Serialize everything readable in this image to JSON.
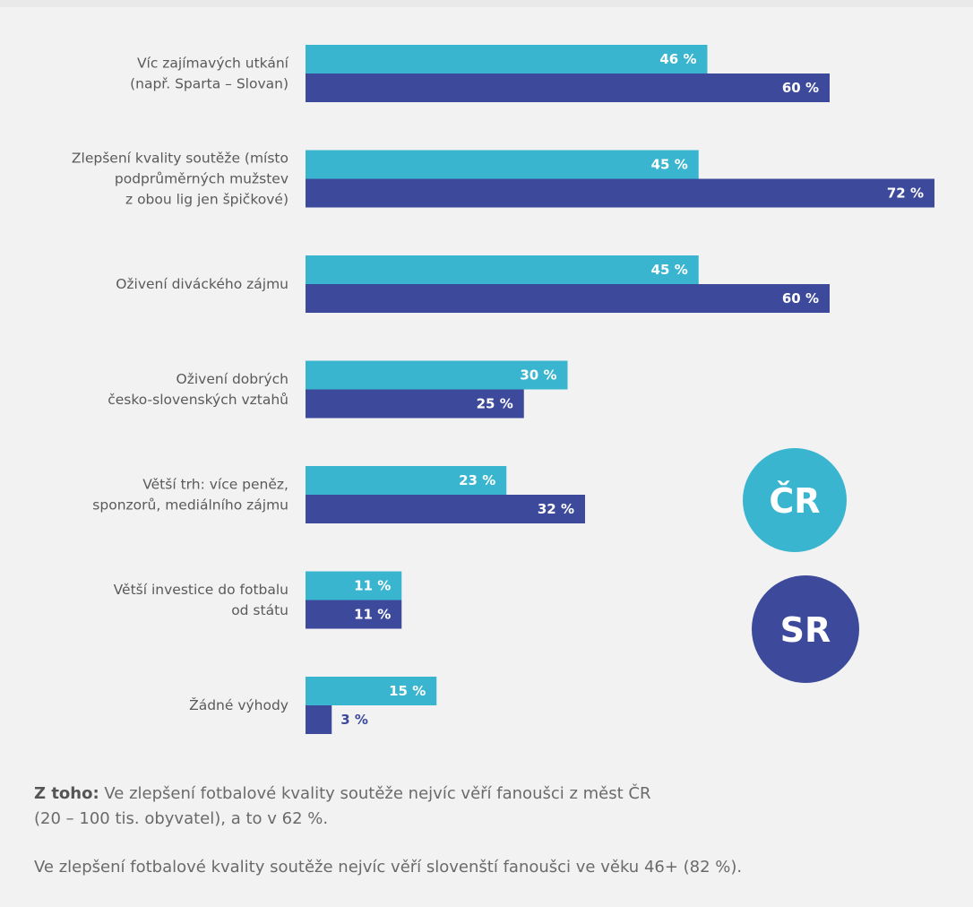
{
  "colors": {
    "cr": "#3ab5cf",
    "sr": "#3d4a9c",
    "background": "#f2f2f2"
  },
  "legend": {
    "cr": "ČR",
    "sr": "SR"
  },
  "chart_data": {
    "type": "bar",
    "orientation": "horizontal",
    "title": "",
    "xlabel": "",
    "ylabel": "",
    "xlim": [
      0,
      72
    ],
    "grid": false,
    "legend_position": "right",
    "categories": [
      [
        "Víc zajímavých utkání",
        "(např. Sparta – Slovan)"
      ],
      [
        "Zlepšení kvality soutěže (místo",
        "podprůměrných mužstev",
        "z obou lig jen špičkové)"
      ],
      [
        "Oživení diváckého zájmu"
      ],
      [
        "Oživení dobrých",
        "česko-slovenských vztahů"
      ],
      [
        "Větší trh: více peněz,",
        "sponzorů, mediálního zájmu"
      ],
      [
        "Větší investice do fotbalu",
        "od státu"
      ],
      [
        "Žádné výhody"
      ]
    ],
    "series": [
      {
        "name": "ČR",
        "values": [
          46,
          45,
          45,
          30,
          23,
          11,
          15
        ],
        "labels": [
          "46 %",
          "45 %",
          "45 %",
          "30 %",
          "23 %",
          "11 %",
          "15 %"
        ]
      },
      {
        "name": "SR",
        "values": [
          60,
          72,
          60,
          25,
          32,
          11,
          3
        ],
        "labels": [
          "60 %",
          "72 %",
          "60 %",
          "25 %",
          "32 %",
          "11 %",
          "3 %"
        ]
      }
    ]
  },
  "notes": {
    "line1_lead": "Z toho:",
    "line1_text": " Ve zlepšení fotbalové kvality soutěže nejvíc věří fanoušci z měst ČR",
    "line1_cont": "(20 – 100 tis. obyvatel), a to v 62 %.",
    "line2": "Ve zlepšení fotbalové kvality soutěže nejvíc věří slovenští fanoušci ve věku 46+ (82 %)."
  }
}
